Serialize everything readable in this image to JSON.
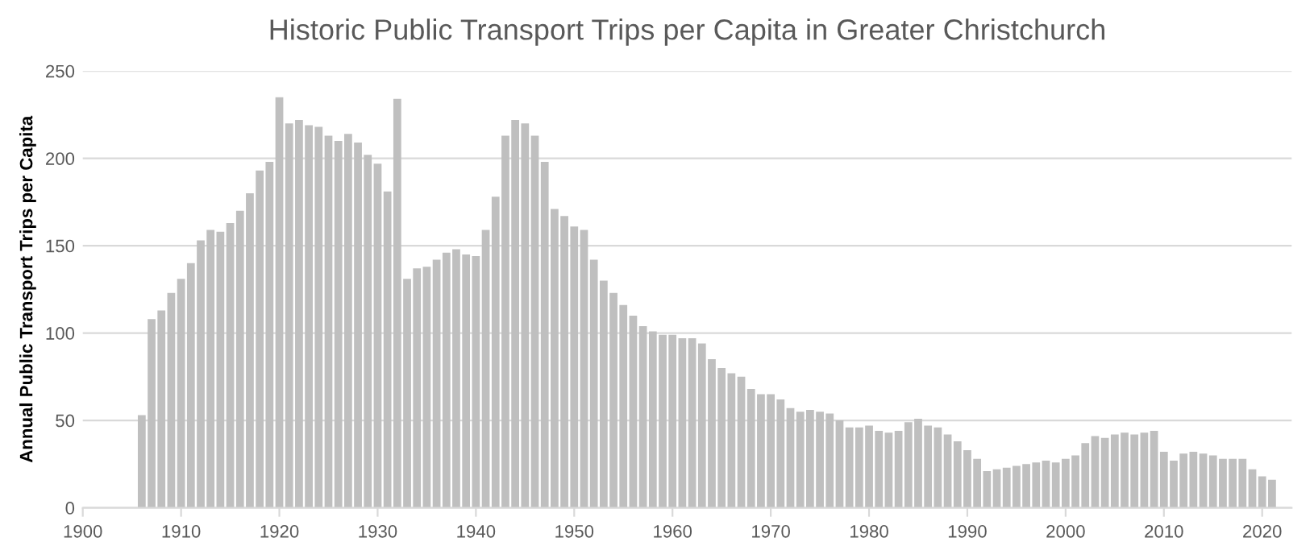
{
  "chart_data": {
    "type": "bar",
    "title": "Historic Public Transport Trips per Capita in Greater Christchurch",
    "ylabel": "Annual Public Transport Trips per Capita",
    "x": [
      1906,
      1907,
      1908,
      1909,
      1910,
      1911,
      1912,
      1913,
      1914,
      1915,
      1916,
      1917,
      1918,
      1919,
      1920,
      1921,
      1922,
      1923,
      1924,
      1925,
      1926,
      1927,
      1928,
      1929,
      1930,
      1931,
      1932,
      1933,
      1934,
      1935,
      1936,
      1937,
      1938,
      1939,
      1940,
      1941,
      1942,
      1943,
      1944,
      1945,
      1946,
      1947,
      1948,
      1949,
      1950,
      1951,
      1952,
      1953,
      1954,
      1955,
      1956,
      1957,
      1958,
      1959,
      1960,
      1961,
      1962,
      1963,
      1964,
      1965,
      1966,
      1967,
      1968,
      1969,
      1970,
      1971,
      1972,
      1973,
      1974,
      1975,
      1976,
      1977,
      1978,
      1979,
      1980,
      1981,
      1982,
      1983,
      1984,
      1985,
      1986,
      1987,
      1988,
      1989,
      1990,
      1991,
      1992,
      1993,
      1994,
      1995,
      1996,
      1997,
      1998,
      1999,
      2000,
      2001,
      2002,
      2003,
      2004,
      2005,
      2006,
      2007,
      2008,
      2009,
      2010,
      2011,
      2012,
      2013,
      2014,
      2015,
      2016,
      2017,
      2018,
      2019,
      2020,
      2021
    ],
    "values": [
      53,
      108,
      113,
      123,
      131,
      140,
      153,
      159,
      158,
      163,
      170,
      180,
      193,
      198,
      235,
      220,
      222,
      219,
      218,
      213,
      210,
      214,
      209,
      202,
      197,
      181,
      234,
      131,
      137,
      138,
      142,
      146,
      148,
      145,
      144,
      159,
      178,
      213,
      222,
      220,
      213,
      198,
      171,
      167,
      161,
      159,
      142,
      130,
      123,
      116,
      110,
      104,
      101,
      99,
      99,
      97,
      97,
      94,
      85,
      80,
      77,
      75,
      68,
      65,
      65,
      62,
      57,
      55,
      56,
      55,
      54,
      50,
      46,
      46,
      47,
      44,
      43,
      44,
      49,
      51,
      47,
      46,
      42,
      38,
      33,
      28,
      21,
      22,
      23,
      24,
      25,
      26,
      27,
      26,
      28,
      30,
      37,
      41,
      40,
      42,
      43,
      42,
      43,
      44,
      32,
      27,
      31,
      32,
      31,
      30,
      28,
      28,
      28,
      22,
      18,
      16
    ],
    "color": "#bfbfbf",
    "xlim": [
      1900,
      2023
    ],
    "xticks": [
      1900,
      1910,
      1920,
      1930,
      1940,
      1950,
      1960,
      1970,
      1980,
      1990,
      2000,
      2010,
      2020
    ],
    "ylim": [
      0,
      250
    ],
    "yticks": [
      0,
      50,
      100,
      150,
      200,
      250
    ],
    "grid": "y"
  }
}
